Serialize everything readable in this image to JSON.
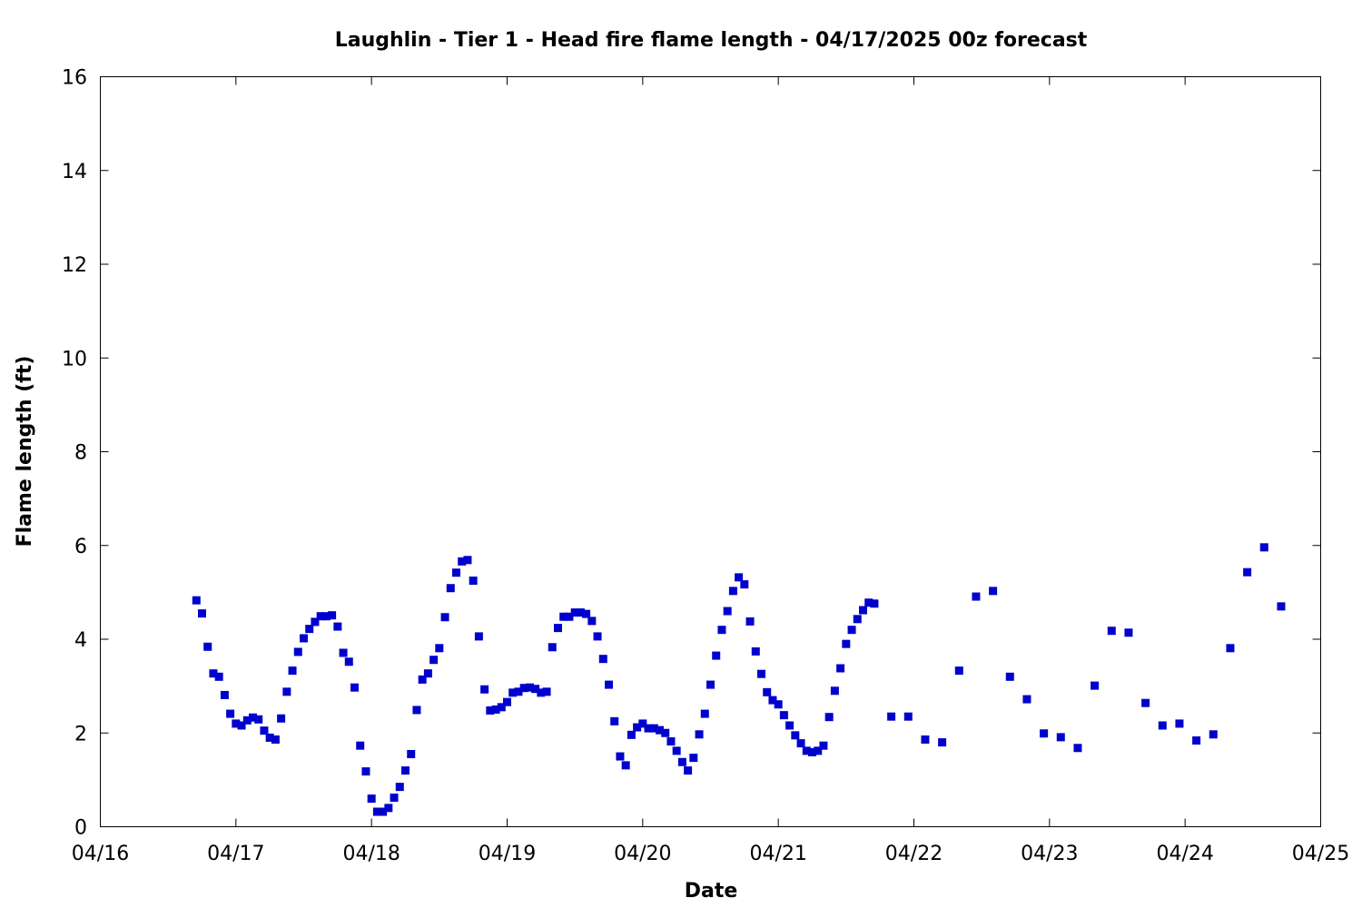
{
  "chart_data": {
    "type": "scatter",
    "title": "Laughlin - Tier 1 - Head fire flame length - 04/17/2025 00z forecast",
    "xlabel": "Date",
    "ylabel": "Flame length (ft)",
    "xlim": [
      "04/16",
      "04/25"
    ],
    "ylim": [
      0,
      16
    ],
    "x_tick_labels": [
      "04/16",
      "04/17",
      "04/18",
      "04/19",
      "04/20",
      "04/21",
      "04/22",
      "04/23",
      "04/24",
      "04/25"
    ],
    "y_tick_labels": [
      "0",
      "2",
      "4",
      "6",
      "8",
      "10",
      "12",
      "14",
      "16"
    ],
    "grid": false,
    "marker_color": "#0000cc",
    "series": [
      {
        "points": [
          [
            "04/16 17:00",
            4.83
          ],
          [
            "04/16 18:00",
            4.55
          ],
          [
            "04/16 19:00",
            3.84
          ],
          [
            "04/16 20:00",
            3.27
          ],
          [
            "04/16 21:00",
            3.2
          ],
          [
            "04/16 22:00",
            2.81
          ],
          [
            "04/16 23:00",
            2.41
          ],
          [
            "04/17 00:00",
            2.2
          ],
          [
            "04/17 01:00",
            2.16
          ],
          [
            "04/17 02:00",
            2.27
          ],
          [
            "04/17 03:00",
            2.33
          ],
          [
            "04/17 04:00",
            2.29
          ],
          [
            "04/17 05:00",
            2.05
          ],
          [
            "04/17 06:00",
            1.9
          ],
          [
            "04/17 07:00",
            1.86
          ],
          [
            "04/17 08:00",
            2.31
          ],
          [
            "04/17 09:00",
            2.88
          ],
          [
            "04/17 10:00",
            3.33
          ],
          [
            "04/17 11:00",
            3.73
          ],
          [
            "04/17 12:00",
            4.02
          ],
          [
            "04/17 13:00",
            4.22
          ],
          [
            "04/17 14:00",
            4.37
          ],
          [
            "04/17 15:00",
            4.49
          ],
          [
            "04/17 16:00",
            4.49
          ],
          [
            "04/17 17:00",
            4.51
          ],
          [
            "04/17 18:00",
            4.27
          ],
          [
            "04/17 19:00",
            3.71
          ],
          [
            "04/17 20:00",
            3.52
          ],
          [
            "04/17 21:00",
            2.97
          ],
          [
            "04/17 22:00",
            1.73
          ],
          [
            "04/17 23:00",
            1.18
          ],
          [
            "04/18 00:00",
            0.6
          ],
          [
            "04/18 01:00",
            0.32
          ],
          [
            "04/18 02:00",
            0.32
          ],
          [
            "04/18 03:00",
            0.4
          ],
          [
            "04/18 04:00",
            0.62
          ],
          [
            "04/18 05:00",
            0.85
          ],
          [
            "04/18 06:00",
            1.2
          ],
          [
            "04/18 07:00",
            1.55
          ],
          [
            "04/18 08:00",
            2.49
          ],
          [
            "04/18 09:00",
            3.14
          ],
          [
            "04/18 10:00",
            3.27
          ],
          [
            "04/18 11:00",
            3.56
          ],
          [
            "04/18 12:00",
            3.81
          ],
          [
            "04/18 13:00",
            4.47
          ],
          [
            "04/18 14:00",
            5.09
          ],
          [
            "04/18 15:00",
            5.42
          ],
          [
            "04/18 16:00",
            5.66
          ],
          [
            "04/18 17:00",
            5.69
          ],
          [
            "04/18 18:00",
            5.25
          ],
          [
            "04/18 19:00",
            4.06
          ],
          [
            "04/18 20:00",
            2.93
          ],
          [
            "04/18 21:00",
            2.48
          ],
          [
            "04/18 22:00",
            2.5
          ],
          [
            "04/18 23:00",
            2.55
          ],
          [
            "04/19 00:00",
            2.66
          ],
          [
            "04/19 01:00",
            2.86
          ],
          [
            "04/19 02:00",
            2.88
          ],
          [
            "04/19 03:00",
            2.96
          ],
          [
            "04/19 04:00",
            2.97
          ],
          [
            "04/19 05:00",
            2.94
          ],
          [
            "04/19 06:00",
            2.86
          ],
          [
            "04/19 07:00",
            2.88
          ],
          [
            "04/19 08:00",
            3.83
          ],
          [
            "04/19 09:00",
            4.24
          ],
          [
            "04/19 10:00",
            4.48
          ],
          [
            "04/19 11:00",
            4.48
          ],
          [
            "04/19 12:00",
            4.57
          ],
          [
            "04/19 13:00",
            4.57
          ],
          [
            "04/19 14:00",
            4.54
          ],
          [
            "04/19 15:00",
            4.39
          ],
          [
            "04/19 16:00",
            4.06
          ],
          [
            "04/19 17:00",
            3.58
          ],
          [
            "04/19 18:00",
            3.03
          ],
          [
            "04/19 19:00",
            2.25
          ],
          [
            "04/19 20:00",
            1.5
          ],
          [
            "04/19 21:00",
            1.31
          ],
          [
            "04/19 22:00",
            1.96
          ],
          [
            "04/19 23:00",
            2.12
          ],
          [
            "04/20 00:00",
            2.2
          ],
          [
            "04/20 01:00",
            2.1
          ],
          [
            "04/20 02:00",
            2.1
          ],
          [
            "04/20 03:00",
            2.06
          ],
          [
            "04/20 04:00",
            2.0
          ],
          [
            "04/20 05:00",
            1.82
          ],
          [
            "04/20 06:00",
            1.62
          ],
          [
            "04/20 07:00",
            1.38
          ],
          [
            "04/20 08:00",
            1.2
          ],
          [
            "04/20 09:00",
            1.47
          ],
          [
            "04/20 10:00",
            1.97
          ],
          [
            "04/20 11:00",
            2.41
          ],
          [
            "04/20 12:00",
            3.03
          ],
          [
            "04/20 13:00",
            3.65
          ],
          [
            "04/20 14:00",
            4.2
          ],
          [
            "04/20 15:00",
            4.6
          ],
          [
            "04/20 16:00",
            5.03
          ],
          [
            "04/20 17:00",
            5.32
          ],
          [
            "04/20 18:00",
            5.17
          ],
          [
            "04/20 19:00",
            4.38
          ],
          [
            "04/20 20:00",
            3.74
          ],
          [
            "04/20 21:00",
            3.26
          ],
          [
            "04/20 22:00",
            2.87
          ],
          [
            "04/20 23:00",
            2.7
          ],
          [
            "04/21 00:00",
            2.61
          ],
          [
            "04/21 01:00",
            2.38
          ],
          [
            "04/21 02:00",
            2.16
          ],
          [
            "04/21 03:00",
            1.95
          ],
          [
            "04/21 04:00",
            1.78
          ],
          [
            "04/21 05:00",
            1.62
          ],
          [
            "04/21 06:00",
            1.59
          ],
          [
            "04/21 07:00",
            1.62
          ],
          [
            "04/21 08:00",
            1.73
          ],
          [
            "04/21 09:00",
            2.34
          ],
          [
            "04/21 10:00",
            2.9
          ],
          [
            "04/21 11:00",
            3.38
          ],
          [
            "04/21 12:00",
            3.9
          ],
          [
            "04/21 13:00",
            4.2
          ],
          [
            "04/21 14:00",
            4.43
          ],
          [
            "04/21 15:00",
            4.62
          ],
          [
            "04/21 16:00",
            4.78
          ],
          [
            "04/21 17:00",
            4.76
          ],
          [
            "04/21 20:00",
            2.35
          ],
          [
            "04/21 23:00",
            2.35
          ],
          [
            "04/22 02:00",
            1.86
          ],
          [
            "04/22 05:00",
            1.8
          ],
          [
            "04/22 08:00",
            3.33
          ],
          [
            "04/22 11:00",
            4.91
          ],
          [
            "04/22 14:00",
            5.03
          ],
          [
            "04/22 17:00",
            3.2
          ],
          [
            "04/22 20:00",
            2.72
          ],
          [
            "04/22 23:00",
            1.99
          ],
          [
            "04/23 02:00",
            1.91
          ],
          [
            "04/23 05:00",
            1.68
          ],
          [
            "04/23 08:00",
            3.01
          ],
          [
            "04/23 11:00",
            4.18
          ],
          [
            "04/23 14:00",
            4.14
          ],
          [
            "04/23 17:00",
            2.64
          ],
          [
            "04/23 20:00",
            2.16
          ],
          [
            "04/23 23:00",
            2.2
          ],
          [
            "04/24 02:00",
            1.84
          ],
          [
            "04/24 05:00",
            1.97
          ],
          [
            "04/24 08:00",
            3.81
          ],
          [
            "04/24 11:00",
            5.43
          ],
          [
            "04/24 14:00",
            5.96
          ],
          [
            "04/24 17:00",
            4.7
          ]
        ]
      }
    ]
  }
}
